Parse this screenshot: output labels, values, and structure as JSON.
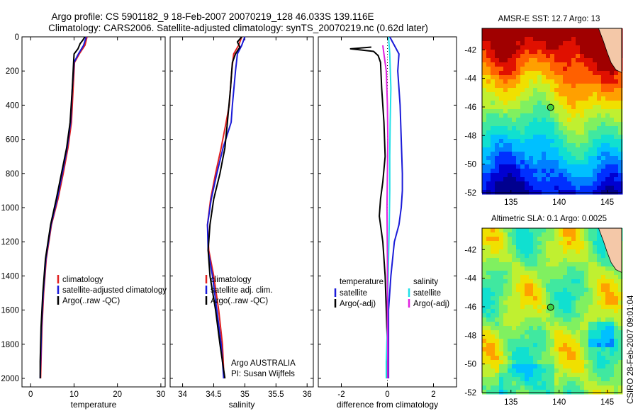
{
  "header": {
    "title_line1": "Argo profile: CS 5901182_9 18-Feb-2007 20070219_128 46.033S 139.116E",
    "title_line2": "Climatology: CARS2006. Satellite-adjusted climatology: synTS_20070219.nc (0.62d later)"
  },
  "side_stamp": "CSIRO 28-Feb-2007 09:01:04",
  "colors": {
    "climatology": "#e02020",
    "satellite": "#1a1ad8",
    "argo": "#000000",
    "diff_temp_sat": "#1a1ad8",
    "diff_temp_argo": "#000000",
    "diff_sal_sat": "#20e0e8",
    "diff_sal_argo": "#e020e0",
    "land": "#f4c8a8"
  },
  "chart_data": [
    {
      "type": "line",
      "id": "temperature",
      "xlabel": "temperature",
      "ylabel": "",
      "xlim": [
        -2,
        31
      ],
      "ylim": [
        2050,
        0
      ],
      "xticks": [
        0,
        10,
        20,
        30
      ],
      "xticklabels": [
        "0",
        "10",
        "20",
        "30"
      ],
      "yticks": [
        0,
        200,
        400,
        600,
        800,
        1000,
        1200,
        1400,
        1600,
        1800,
        2000
      ],
      "yticklabels": [
        "0",
        "200",
        "400",
        "600",
        "800",
        "1000",
        "1200",
        "1400",
        "1600",
        "1800",
        "2000"
      ],
      "series": [
        {
          "name": "climatology",
          "color_key": "climatology",
          "x": [
            13.0,
            12.5,
            11.2,
            10.1,
            9.8,
            9.4,
            8.6,
            7.5,
            6.3,
            4.8,
            3.6,
            3.0,
            2.6,
            2.4,
            2.3
          ],
          "y": [
            0,
            50,
            100,
            150,
            300,
            500,
            650,
            800,
            950,
            1100,
            1300,
            1500,
            1700,
            1900,
            2000
          ]
        },
        {
          "name": "satellite-adjusted climatology",
          "color_key": "satellite",
          "x": [
            12.8,
            12.2,
            11.0,
            10.0,
            9.6,
            9.2,
            8.4,
            7.3,
            6.1,
            4.7,
            3.5,
            2.9,
            2.5,
            2.3,
            2.2
          ],
          "y": [
            0,
            50,
            100,
            150,
            300,
            500,
            650,
            800,
            950,
            1100,
            1300,
            1500,
            1700,
            1900,
            2000
          ]
        },
        {
          "name": "Argo(..raw -QC)",
          "color_key": "argo",
          "x": [
            12.5,
            12.0,
            11.4,
            10.9,
            10.0,
            9.9,
            9.6,
            9.1,
            8.3,
            7.1,
            5.9,
            4.6,
            3.4,
            2.8,
            2.4,
            2.2,
            2.2
          ],
          "y": [
            0,
            20,
            40,
            70,
            100,
            150,
            300,
            500,
            650,
            800,
            950,
            1100,
            1300,
            1500,
            1700,
            1900,
            2000
          ]
        }
      ],
      "legend": [
        "climatology",
        "satellite-adjusted climatology",
        "Argo(..raw -QC)"
      ],
      "legend_position": "lower-right"
    },
    {
      "type": "line",
      "id": "salinity",
      "xlabel": "salinity",
      "ylabel": "",
      "xlim": [
        33.8,
        36.1
      ],
      "ylim": [
        2050,
        0
      ],
      "xticks": [
        34,
        34.5,
        35,
        35.5,
        36
      ],
      "xticklabels": [
        "34",
        "34.5",
        "35",
        "35.5",
        "36"
      ],
      "series": [
        {
          "name": "climatology",
          "color_key": "climatology",
          "x": [
            34.95,
            34.9,
            34.82,
            34.79,
            34.75,
            34.7,
            34.62,
            34.53,
            34.45,
            34.4,
            34.42,
            34.5,
            34.58,
            34.64,
            34.66,
            34.67
          ],
          "y": [
            0,
            50,
            100,
            200,
            400,
            500,
            650,
            800,
            950,
            1100,
            1250,
            1400,
            1600,
            1800,
            1950,
            2000
          ]
        },
        {
          "name": "satellite adj. clim.",
          "color_key": "satellite",
          "x": [
            35.0,
            34.95,
            34.88,
            34.85,
            34.8,
            34.78,
            34.65,
            34.55,
            34.46,
            34.4,
            34.41,
            34.48,
            34.55,
            34.62,
            34.65,
            34.66
          ],
          "y": [
            0,
            50,
            100,
            200,
            400,
            500,
            650,
            800,
            950,
            1100,
            1250,
            1400,
            1600,
            1800,
            1950,
            2000
          ]
        },
        {
          "name": "Argo(..raw -QC)",
          "color_key": "argo",
          "x": [
            34.95,
            34.88,
            34.92,
            34.85,
            34.8,
            34.77,
            34.72,
            34.68,
            34.6,
            34.5,
            34.44,
            34.41,
            34.44,
            34.53,
            34.6,
            34.66,
            34.68,
            34.68
          ],
          "y": [
            0,
            30,
            60,
            100,
            150,
            300,
            500,
            650,
            800,
            950,
            1100,
            1250,
            1400,
            1600,
            1800,
            1950,
            2000,
            2000
          ]
        }
      ],
      "legend": [
        "climatology",
        "satellite adj. clim.",
        "Argo(..raw -QC)"
      ],
      "legend_position": "lower-right",
      "annotations": [
        "Argo AUSTRALIA",
        "PI: Susan Wijffels"
      ]
    },
    {
      "type": "line",
      "id": "difference",
      "xlabel": "difference from climatology",
      "ylabel": "",
      "xlim": [
        -3,
        3
      ],
      "ylim": [
        2050,
        0
      ],
      "xticks": [
        -2,
        0,
        2
      ],
      "xticklabels": [
        "-2",
        "0",
        "2"
      ],
      "legend_groups": [
        {
          "title": "temperature",
          "entries": [
            {
              "label": "satellite",
              "color_key": "diff_temp_sat"
            },
            {
              "label": "Argo(-adj)",
              "color_key": "diff_temp_argo"
            }
          ]
        },
        {
          "title": "salinity",
          "entries": [
            {
              "label": "satellite",
              "color_key": "diff_sal_sat"
            },
            {
              "label": "Argo(-adj)",
              "color_key": "diff_sal_argo"
            }
          ]
        }
      ],
      "series": [
        {
          "name": "temperature satellite",
          "color_key": "diff_temp_sat",
          "x": [
            0.1,
            0.3,
            0.5,
            0.45,
            0.55,
            0.6,
            0.65,
            0.65,
            0.6,
            0.5,
            0.3,
            0.15,
            0.05,
            0.05,
            0.05
          ],
          "y": [
            0,
            50,
            100,
            200,
            400,
            600,
            800,
            900,
            1000,
            1100,
            1200,
            1400,
            1600,
            1800,
            2000
          ]
        },
        {
          "name": "temperature Argo(-adj)",
          "color_key": "diff_temp_argo",
          "x": [
            -0.7,
            -1.6,
            -0.6,
            -0.4,
            -0.3,
            -0.25,
            -0.15,
            -0.1,
            -0.2,
            -0.3,
            -0.35,
            -0.2,
            -0.1,
            -0.05,
            0.0,
            0.0
          ],
          "y": [
            60,
            70,
            85,
            110,
            150,
            300,
            500,
            700,
            850,
            950,
            1050,
            1200,
            1400,
            1600,
            1800,
            2000
          ]
        },
        {
          "name": "salinity satellite",
          "color_key": "diff_sal_sat",
          "x": [
            0.05,
            0.1,
            0.15,
            0.12,
            0.1,
            0.1,
            0.08,
            0.05,
            0.02,
            0.0,
            -0.05,
            -0.05
          ],
          "y": [
            0,
            100,
            300,
            500,
            700,
            900,
            1100,
            1300,
            1500,
            1700,
            1900,
            2000
          ]
        },
        {
          "name": "salinity Argo(-adj)",
          "color_key": "diff_sal_argo",
          "x": [
            -0.2,
            -0.15,
            -0.05,
            0.0,
            0.02,
            0.0,
            -0.02,
            0.0,
            0.0,
            0.02,
            0.02
          ],
          "y": [
            50,
            100,
            200,
            400,
            600,
            800,
            1000,
            1300,
            1600,
            1900,
            2000
          ]
        }
      ]
    },
    {
      "type": "heatmap",
      "id": "sst_map",
      "title": "AMSR-E SST: 12.7 Argo: 13",
      "xlim": [
        132,
        146.5
      ],
      "ylim": [
        -52,
        -40.5
      ],
      "xticks": [
        135,
        140,
        145
      ],
      "xticklabels": [
        "135",
        "140",
        "145"
      ],
      "yticks": [
        -42,
        -44,
        -46,
        -48,
        -50,
        -52
      ],
      "yticklabels": [
        "-42",
        "-44",
        "-46",
        "-48",
        "-50",
        "-52"
      ],
      "marker": {
        "lon": 139.116,
        "lat": -46.033
      },
      "marker_value_color": "#40d040"
    },
    {
      "type": "heatmap",
      "id": "sla_map",
      "title": "Altimetric SLA: 0.1 Argo: 0.0025",
      "xlim": [
        132,
        146.5
      ],
      "ylim": [
        -52,
        -40.5
      ],
      "xticks": [
        135,
        140,
        145
      ],
      "xticklabels": [
        "135",
        "140",
        "145"
      ],
      "yticks": [
        -42,
        -44,
        -46,
        -48,
        -50,
        -52
      ],
      "yticklabels": [
        "-42",
        "-44",
        "-46",
        "-48",
        "-50",
        "-52"
      ],
      "marker": {
        "lon": 139.116,
        "lat": -46.033
      },
      "marker_value_color": "#40d040"
    }
  ]
}
